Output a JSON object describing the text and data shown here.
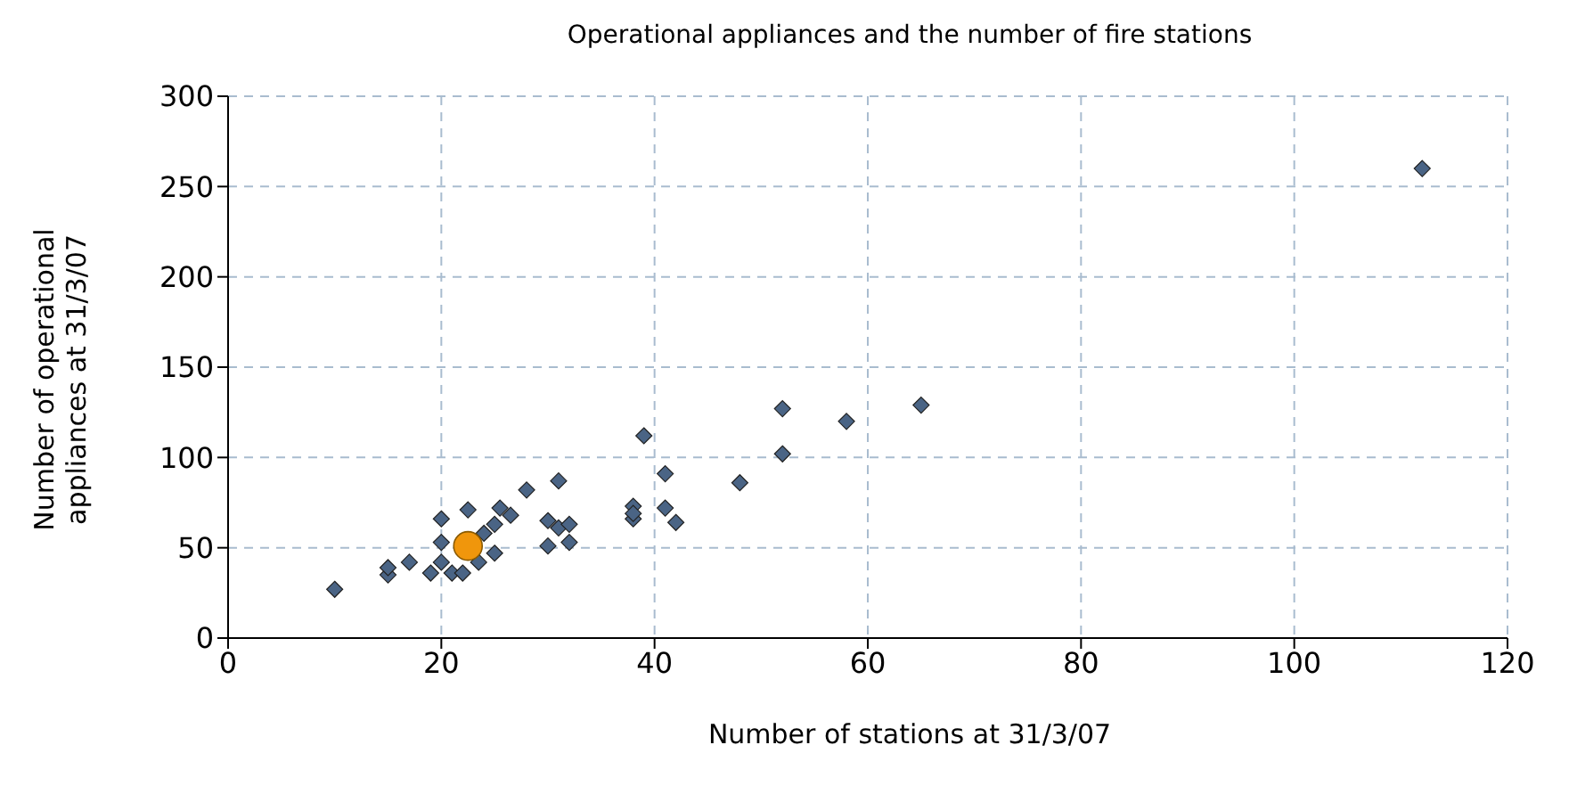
{
  "chart_data": {
    "type": "scatter",
    "title": "Operational appliances and the number of fire stations",
    "xlabel": "Number of stations at 31/3/07",
    "ylabel": "Number of operational appliances at 31/3/07",
    "series": [
      {
        "color": "#4a6485",
        "x": [
          10,
          15,
          15,
          17,
          19,
          20,
          20,
          20,
          21,
          22,
          22.5,
          23.5,
          24,
          25,
          25,
          25.5,
          26.5,
          28,
          30,
          30,
          31,
          31,
          32,
          32,
          38,
          38,
          38,
          39,
          41,
          41,
          42,
          48,
          52,
          52,
          58,
          65,
          112
        ],
        "values": [
          27,
          35,
          39,
          42,
          36,
          42,
          53,
          66,
          36,
          36,
          71,
          42,
          58,
          63,
          47,
          72,
          68,
          82,
          51,
          65,
          87,
          61,
          53,
          63,
          73,
          66,
          69,
          112,
          91,
          72,
          64,
          86,
          127,
          102,
          120,
          129,
          260
        ]
      },
      {
        "color": "#f0960c",
        "x": [
          22.5
        ],
        "values": [
          51
        ],
        "marker": "circle"
      }
    ],
    "xlim": [
      0,
      120
    ],
    "xticks": [
      0,
      20,
      40,
      60,
      80,
      100,
      120
    ],
    "ylim": [
      0,
      300
    ],
    "yticks": [
      0,
      50,
      100,
      150,
      200,
      250,
      300
    ],
    "grid": true,
    "marker": "diamond",
    "legend": false
  }
}
